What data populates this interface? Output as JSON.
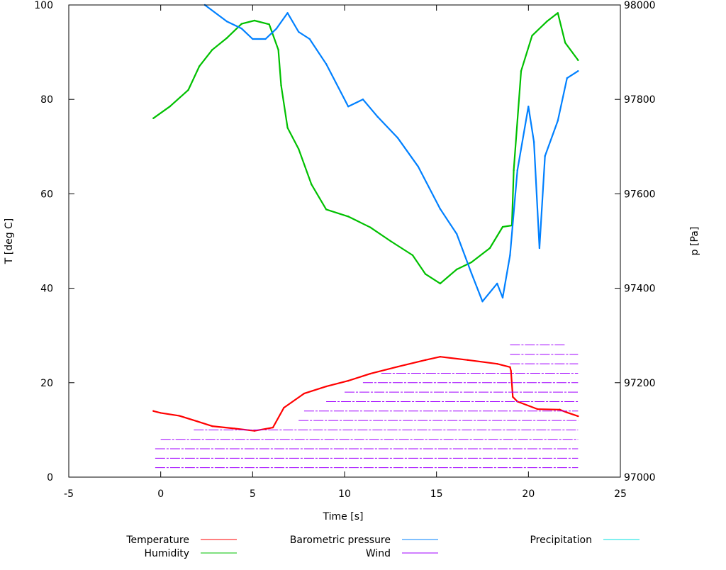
{
  "chart_data": {
    "type": "line",
    "xlabel": "Time [s]",
    "ylabel": "T [deg C]",
    "y2label": "p [Pa]",
    "xlim": [
      -5,
      25
    ],
    "ylim": [
      0,
      100
    ],
    "y2lim": [
      97000,
      98000
    ],
    "xticks": [
      "-5",
      "0",
      "5",
      "10",
      "15",
      "20",
      "25"
    ],
    "yticks": [
      "0",
      "20",
      "40",
      "60",
      "80",
      "100"
    ],
    "y2ticks": [
      "97000",
      "97200",
      "97400",
      "97600",
      "97800",
      "98000"
    ],
    "grid": false,
    "legend": "bottom",
    "series": [
      {
        "name": "Temperature",
        "color": "#ff0000",
        "axis": "y",
        "x": [
          -0.4,
          0,
          1,
          2,
          2.8,
          4,
          5.1,
          6.1,
          6.7,
          7.8,
          9,
          10.2,
          11.4,
          12.9,
          14.4,
          15.2,
          16.7,
          18.3,
          19.0,
          19.05,
          19.15,
          19.4,
          20.5,
          21.7,
          22.1,
          22.7
        ],
        "y": [
          14,
          13.6,
          13,
          11.8,
          10.8,
          10.3,
          9.8,
          10.5,
          14.7,
          17.7,
          19.2,
          20.4,
          21.9,
          23.4,
          24.8,
          25.5,
          24.8,
          24,
          23.3,
          22.5,
          17,
          16,
          14.4,
          14.3,
          13.7,
          12.9
        ]
      },
      {
        "name": "Humidity",
        "color": "#00c000",
        "axis": "y",
        "x": [
          -0.4,
          0.5,
          1.5,
          2.1,
          2.8,
          3.6,
          4.4,
          5.1,
          5.9,
          6.4,
          6.55,
          6.9,
          7.5,
          8.2,
          9,
          10.2,
          11.4,
          12.5,
          13.7,
          14.4,
          15.2,
          16.1,
          16.9,
          17.9,
          18.6,
          19.1,
          19.2,
          19.6,
          20.2,
          21,
          21.6,
          22,
          22.7
        ],
        "y": [
          76,
          78.5,
          82,
          87,
          90.5,
          93,
          96,
          96.7,
          95.9,
          90.5,
          83,
          74,
          69.5,
          62,
          56.7,
          55.2,
          52.9,
          50,
          47,
          43,
          41,
          44,
          45.5,
          48.5,
          53,
          53.3,
          65,
          86,
          93.5,
          96.5,
          98.3,
          92,
          88.3
        ]
      },
      {
        "name": "Barometric pressure",
        "color": "#0080ff",
        "axis": "y2",
        "x": [
          2.4,
          3.6,
          4.4,
          5,
          5.7,
          6.3,
          6.9,
          7.5,
          8.1,
          9,
          10.2,
          11,
          11.8,
          12.9,
          14,
          15.2,
          16.1,
          16.9,
          17.5,
          18.3,
          18.6,
          19,
          19.4,
          20,
          20.3,
          20.6,
          20.9,
          21.6,
          22.1,
          22.7
        ],
        "y": [
          98000,
          97965,
          97950,
          97928,
          97928,
          97950,
          97983,
          97943,
          97928,
          97875,
          97785,
          97800,
          97763,
          97718,
          97658,
          97568,
          97515,
          97432,
          97372,
          97410,
          97380,
          97470,
          97650,
          97785,
          97710,
          97485,
          97680,
          97755,
          97845,
          97860
        ]
      },
      {
        "name": "Wind",
        "color": "#a000ff",
        "axis": "y",
        "levels": [
          {
            "value": 2,
            "from": -0.3,
            "to": 22.7
          },
          {
            "value": 4,
            "from": -0.3,
            "to": 22.7
          },
          {
            "value": 6,
            "from": -0.3,
            "to": 22.7
          },
          {
            "value": 8,
            "from": 0,
            "to": 22.7
          },
          {
            "value": 10,
            "from": 1.8,
            "to": 22.7
          },
          {
            "value": 12,
            "from": 7.5,
            "to": 22.7
          },
          {
            "value": 14,
            "from": 7.8,
            "to": 22.7
          },
          {
            "value": 16,
            "from": 9,
            "to": 22.7
          },
          {
            "value": 18,
            "from": 10,
            "to": 22.7
          },
          {
            "value": 20,
            "from": 11,
            "to": 22.7
          },
          {
            "value": 22,
            "from": 12,
            "to": 22.7
          },
          {
            "value": 24,
            "from": 19,
            "to": 22.7
          },
          {
            "value": 26,
            "from": 19,
            "to": 22.7
          },
          {
            "value": 28,
            "from": 19,
            "to": 22
          }
        ]
      },
      {
        "name": "Precipitation",
        "color": "#00e0e0",
        "axis": "y",
        "x": [],
        "y": []
      }
    ]
  }
}
